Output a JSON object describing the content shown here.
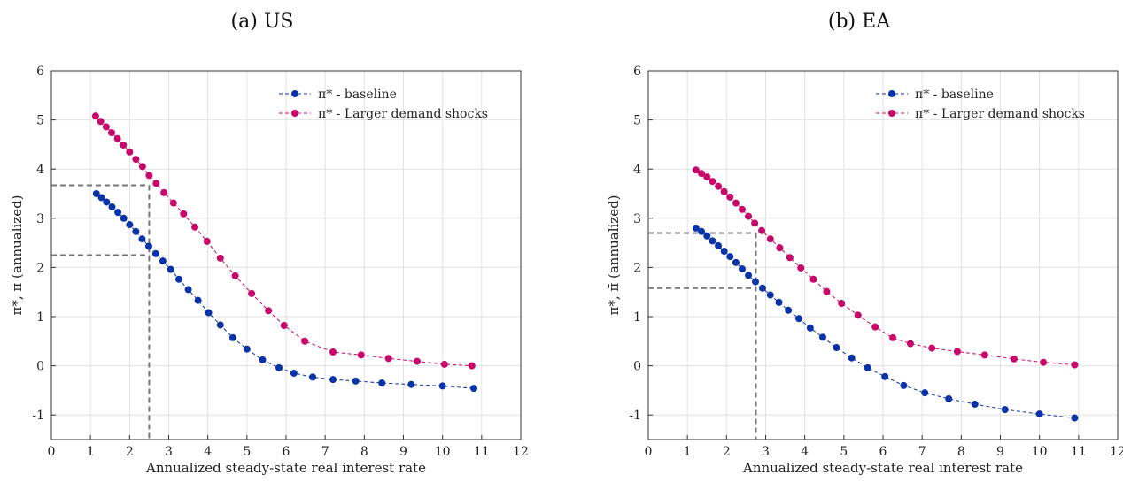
{
  "chart_data": [
    {
      "type": "line",
      "title": "(a) US",
      "xlabel": "Annualized steady-state real interest rate",
      "ylabel": "π*, π̄ (annualized)",
      "xlim": [
        0,
        12
      ],
      "ylim": [
        -1.5,
        6
      ],
      "xticks": [
        "0",
        "1",
        "2",
        "3",
        "4",
        "5",
        "6",
        "7",
        "8",
        "9",
        "10",
        "11",
        "12"
      ],
      "yticks": [
        "-1",
        "0",
        "1",
        "2",
        "3",
        "4",
        "5",
        "6"
      ],
      "grid": true,
      "legend_position": "top-right",
      "series": [
        {
          "name": "π* - baseline",
          "color": "#0a33a8",
          "x": [
            1.15,
            1.28,
            1.41,
            1.55,
            1.7,
            1.85,
            2.0,
            2.16,
            2.32,
            2.49,
            2.67,
            2.85,
            3.05,
            3.26,
            3.5,
            3.75,
            4.02,
            4.32,
            4.64,
            5.0,
            5.4,
            5.82,
            6.2,
            6.68,
            7.2,
            7.78,
            8.45,
            9.2,
            10.0,
            10.8
          ],
          "y": [
            3.5,
            3.42,
            3.33,
            3.23,
            3.12,
            3.0,
            2.87,
            2.73,
            2.58,
            2.43,
            2.28,
            2.13,
            1.96,
            1.76,
            1.55,
            1.33,
            1.08,
            0.83,
            0.57,
            0.34,
            0.12,
            -0.04,
            -0.15,
            -0.23,
            -0.28,
            -0.31,
            -0.35,
            -0.38,
            -0.41,
            -0.46
          ]
        },
        {
          "name": "π* - Larger demand shocks",
          "color": "#c8076a",
          "x": [
            1.13,
            1.26,
            1.4,
            1.54,
            1.69,
            1.84,
            2.0,
            2.16,
            2.33,
            2.5,
            2.68,
            2.88,
            3.12,
            3.38,
            3.67,
            3.98,
            4.32,
            4.7,
            5.12,
            5.55,
            5.95,
            6.48,
            7.2,
            7.92,
            8.62,
            9.35,
            10.05,
            10.75
          ],
          "y": [
            5.08,
            4.97,
            4.86,
            4.74,
            4.62,
            4.49,
            4.35,
            4.2,
            4.05,
            3.87,
            3.71,
            3.52,
            3.31,
            3.09,
            2.82,
            2.53,
            2.19,
            1.83,
            1.47,
            1.12,
            0.82,
            0.5,
            0.28,
            0.22,
            0.15,
            0.09,
            0.03,
            0.0
          ]
        }
      ],
      "reference_lines": [
        {
          "x": 2.5,
          "y": 3.67
        },
        {
          "x": 2.5,
          "y": 2.25
        }
      ]
    },
    {
      "type": "line",
      "title": "(b) EA",
      "xlabel": "Annualized steady-state real interest rate",
      "ylabel": "π*, π̄ (annualized)",
      "xlim": [
        0,
        12
      ],
      "ylim": [
        -1.5,
        6
      ],
      "xticks": [
        "0",
        "1",
        "2",
        "3",
        "4",
        "5",
        "6",
        "7",
        "8",
        "9",
        "10",
        "11",
        "12"
      ],
      "yticks": [
        "-1",
        "0",
        "1",
        "2",
        "3",
        "4",
        "5",
        "6"
      ],
      "grid": true,
      "legend_position": "top-right",
      "series": [
        {
          "name": "π* - baseline",
          "color": "#0a33a8",
          "x": [
            1.22,
            1.36,
            1.5,
            1.64,
            1.79,
            1.94,
            2.09,
            2.24,
            2.4,
            2.56,
            2.74,
            2.92,
            3.12,
            3.34,
            3.58,
            3.85,
            4.14,
            4.46,
            4.81,
            5.2,
            5.61,
            6.05,
            6.53,
            7.07,
            7.68,
            8.35,
            9.12,
            10.0,
            10.9
          ],
          "y": [
            2.8,
            2.73,
            2.64,
            2.54,
            2.44,
            2.33,
            2.22,
            2.1,
            1.97,
            1.84,
            1.71,
            1.58,
            1.44,
            1.29,
            1.13,
            0.96,
            0.77,
            0.58,
            0.37,
            0.16,
            -0.04,
            -0.22,
            -0.4,
            -0.55,
            -0.67,
            -0.78,
            -0.89,
            -0.98,
            -1.06
          ]
        },
        {
          "name": "π* - Larger demand shocks",
          "color": "#c8076a",
          "x": [
            1.22,
            1.36,
            1.5,
            1.64,
            1.79,
            1.94,
            2.09,
            2.24,
            2.4,
            2.56,
            2.72,
            2.9,
            3.12,
            3.36,
            3.62,
            3.9,
            4.22,
            4.56,
            4.94,
            5.36,
            5.8,
            6.25,
            6.7,
            7.25,
            7.9,
            8.6,
            9.35,
            10.1,
            10.9
          ],
          "y": [
            3.98,
            3.91,
            3.84,
            3.75,
            3.65,
            3.54,
            3.43,
            3.31,
            3.18,
            3.04,
            2.9,
            2.75,
            2.58,
            2.4,
            2.2,
            1.99,
            1.76,
            1.51,
            1.27,
            1.03,
            0.79,
            0.57,
            0.45,
            0.36,
            0.29,
            0.22,
            0.14,
            0.07,
            0.02
          ]
        }
      ],
      "reference_lines": [
        {
          "x": 2.75,
          "y": 2.7
        },
        {
          "x": 2.75,
          "y": 1.58
        }
      ]
    }
  ]
}
